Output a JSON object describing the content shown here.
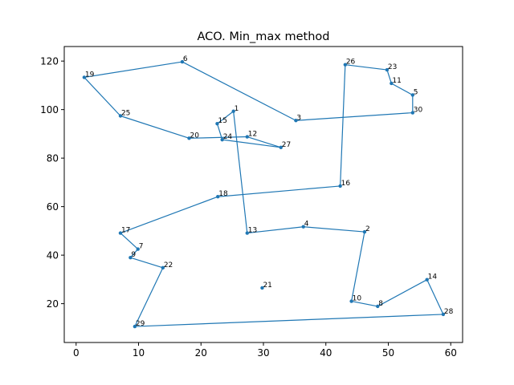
{
  "chart_data": {
    "type": "line",
    "title": "ACO. Min_max method",
    "xlabel": "",
    "ylabel": "",
    "xlim": [
      -1.9,
      61.9
    ],
    "ylim": [
      4.0,
      126.0
    ],
    "xticks": [
      0,
      10,
      20,
      30,
      40,
      50,
      60
    ],
    "yticks": [
      20,
      40,
      60,
      80,
      100,
      120
    ],
    "grid": false,
    "line_color": "#1f77b4",
    "points": [
      {
        "label": "1",
        "x": 25.2,
        "y": 99.3
      },
      {
        "label": "2",
        "x": 46.2,
        "y": 49.6
      },
      {
        "label": "3",
        "x": 35.2,
        "y": 95.5
      },
      {
        "label": "4",
        "x": 36.4,
        "y": 51.7
      },
      {
        "label": "5",
        "x": 53.9,
        "y": 106.0
      },
      {
        "label": "6",
        "x": 17.0,
        "y": 119.7
      },
      {
        "label": "7",
        "x": 9.9,
        "y": 42.5
      },
      {
        "label": "8",
        "x": 48.3,
        "y": 18.9
      },
      {
        "label": "9",
        "x": 8.7,
        "y": 39.0
      },
      {
        "label": "10",
        "x": 44.1,
        "y": 21.0
      },
      {
        "label": "11",
        "x": 50.5,
        "y": 110.8
      },
      {
        "label": "12",
        "x": 27.4,
        "y": 88.8
      },
      {
        "label": "13",
        "x": 27.4,
        "y": 49.1
      },
      {
        "label": "14",
        "x": 56.2,
        "y": 29.9
      },
      {
        "label": "15",
        "x": 22.6,
        "y": 94.2
      },
      {
        "label": "16",
        "x": 42.3,
        "y": 68.5
      },
      {
        "label": "17",
        "x": 7.1,
        "y": 49.1
      },
      {
        "label": "18",
        "x": 22.7,
        "y": 64.1
      },
      {
        "label": "19",
        "x": 1.3,
        "y": 113.3
      },
      {
        "label": "20",
        "x": 18.1,
        "y": 88.2
      },
      {
        "label": "21",
        "x": 29.8,
        "y": 26.5
      },
      {
        "label": "22",
        "x": 13.9,
        "y": 34.8
      },
      {
        "label": "23",
        "x": 49.8,
        "y": 116.4
      },
      {
        "label": "24",
        "x": 23.4,
        "y": 87.6
      },
      {
        "label": "25",
        "x": 7.1,
        "y": 97.4
      },
      {
        "label": "26",
        "x": 43.1,
        "y": 118.5
      },
      {
        "label": "27",
        "x": 32.8,
        "y": 84.4
      },
      {
        "label": "28",
        "x": 58.8,
        "y": 15.6
      },
      {
        "label": "29",
        "x": 9.4,
        "y": 10.6
      },
      {
        "label": "30",
        "x": 53.9,
        "y": 98.7
      }
    ],
    "tour": [
      "19",
      "6",
      "3",
      "30",
      "5",
      "11",
      "23",
      "26",
      "16",
      "18",
      "17",
      "7",
      "9",
      "22",
      "29",
      "28",
      "14",
      "8",
      "10",
      "2",
      "4",
      "13",
      "1",
      "15",
      "24",
      "27",
      "12",
      "20",
      "25",
      "19"
    ]
  }
}
